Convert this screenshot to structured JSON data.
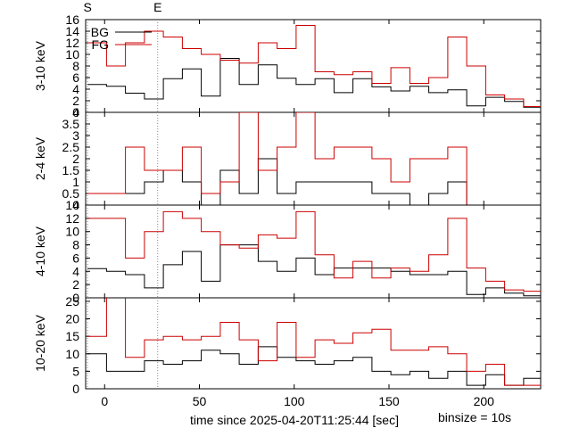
{
  "chart_data": {
    "type": "line",
    "step": true,
    "x_label": "time since 2025-04-20T11:25:44 [sec]",
    "binsize_label": "binsize = 10s",
    "x_range": [
      -10,
      230
    ],
    "x_ticks": [
      0,
      50,
      100,
      150,
      200
    ],
    "markers": [
      {
        "label": "S",
        "x": -9
      },
      {
        "label": "E",
        "x": 28
      }
    ],
    "legend": [
      {
        "name": "BG",
        "color": "#000000"
      },
      {
        "name": "FG",
        "color": "#cc0000"
      }
    ],
    "bin_edges": [
      -9,
      1,
      11,
      21,
      31,
      41,
      51,
      61,
      71,
      81,
      91,
      101,
      111,
      121,
      131,
      141,
      151,
      161,
      171,
      181,
      191,
      201,
      211,
      221,
      231
    ],
    "panels": [
      {
        "ylabel": "3-10 keV",
        "ylim": [
          0,
          16
        ],
        "yticks": [
          0,
          2,
          4,
          6,
          8,
          10,
          12,
          14,
          16
        ],
        "series": [
          {
            "name": "BG",
            "color": "#000000",
            "values": [
              4.8,
              4.5,
              3.3,
              2.3,
              5.8,
              7.5,
              2.8,
              9.3,
              4.8,
              8.2,
              5.9,
              4.8,
              5.8,
              3.4,
              5.8,
              4.4,
              3.7,
              4.5,
              3.4,
              3.9,
              1.1,
              2.6,
              1.9,
              0.9
            ]
          },
          {
            "name": "FG",
            "color": "#cc0000",
            "values": [
              12,
              8,
              12,
              14,
              13,
              11,
              10,
              9,
              8.5,
              12,
              11,
              15,
              7,
              6.5,
              7,
              5,
              7.7,
              5,
              6,
              13,
              8,
              3,
              2.3,
              1
            ]
          }
        ]
      },
      {
        "ylabel": "2-4 keV",
        "ylim": [
          0,
          4
        ],
        "yticks": [
          0,
          0.5,
          1,
          1.5,
          2,
          2.5,
          3,
          3.5,
          4
        ],
        "series": [
          {
            "name": "BG",
            "color": "#000000",
            "values": [
              0.5,
              0.5,
              0.5,
              1,
              1.5,
              1,
              0,
              1.5,
              0.5,
              2,
              0.5,
              1,
              1,
              1,
              1,
              0.5,
              0.5,
              0,
              0.5,
              1,
              0,
              0,
              0,
              0
            ]
          },
          {
            "name": "FG",
            "color": "#cc0000",
            "values": [
              0.5,
              0.5,
              2.5,
              1.5,
              1.5,
              2.5,
              0.5,
              1,
              4,
              1.5,
              2.5,
              4,
              2,
              2.5,
              2.5,
              2,
              1,
              2,
              2,
              2.5,
              0,
              0,
              0,
              0
            ]
          }
        ]
      },
      {
        "ylabel": "4-10 keV",
        "ylim": [
          0,
          14
        ],
        "yticks": [
          0,
          2,
          4,
          6,
          8,
          10,
          12,
          14
        ],
        "series": [
          {
            "name": "BG",
            "color": "#000000",
            "values": [
              4.4,
              4,
              3.5,
              1.5,
              5,
              7,
              2.5,
              8,
              8,
              5.5,
              4,
              6,
              3.5,
              4.5,
              4.5,
              4.5,
              4,
              3.5,
              3.5,
              4,
              0.5,
              1.5,
              0.7,
              0.3
            ]
          },
          {
            "name": "FG",
            "color": "#cc0000",
            "values": [
              12,
              12,
              6,
              10,
              13,
              12,
              10,
              8,
              7.5,
              9.5,
              9,
              13,
              6.5,
              3,
              5.5,
              3,
              4.5,
              4,
              6.5,
              12,
              4.5,
              2.5,
              1.2,
              1
            ]
          }
        ]
      },
      {
        "ylabel": "10-20 keV",
        "ylim": [
          0,
          26
        ],
        "yticks": [
          0,
          5,
          10,
          15,
          20,
          25
        ],
        "series": [
          {
            "name": "BG",
            "color": "#000000",
            "values": [
              10,
              5,
              5,
              8,
              7,
              8,
              11,
              10,
              7,
              12,
              9,
              8,
              7,
              8,
              9,
              5,
              4,
              5,
              3,
              5,
              1,
              4,
              1,
              3
            ]
          },
          {
            "name": "FG",
            "color": "#cc0000",
            "values": [
              15,
              30,
              9,
              14,
              15,
              14,
              15,
              19,
              14,
              8,
              19,
              9,
              14,
              13,
              16,
              17,
              11,
              11,
              12,
              10,
              5,
              7,
              1,
              1
            ]
          }
        ]
      }
    ]
  }
}
